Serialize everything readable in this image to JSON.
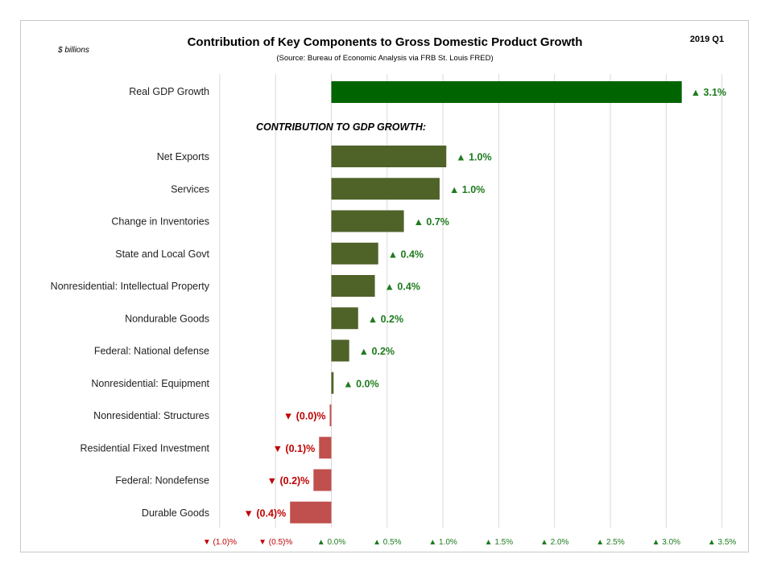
{
  "chart_data": {
    "type": "bar",
    "orientation": "horizontal",
    "title": "Contribution  of Key Components  to Gross Domestic Product Growth",
    "subtitle": "(Source: Bureau of Economic Analysis via FRB St. Louis FRED)",
    "unit_note": "$ billions",
    "period": "2019  Q1",
    "section_label": "CONTRIBUTION TO GDP GROWTH:",
    "xlim": [
      -1.0,
      3.5
    ],
    "x_ticks": [
      -1.0,
      -0.5,
      0.0,
      0.5,
      1.0,
      1.5,
      2.0,
      2.5,
      3.0,
      3.5
    ],
    "x_tick_labels": [
      "▼ (1.0)%",
      "▼ (0.5)%",
      "▲ 0.0%",
      "▲ 0.5%",
      "▲ 1.0%",
      "▲ 1.5%",
      "▲ 2.0%",
      "▲ 2.5%",
      "▲ 3.0%",
      "▲ 3.5%"
    ],
    "grid": "vertical",
    "headline": {
      "category": "Real GDP Growth",
      "value": 3.14,
      "label": "▲ 3.1%"
    },
    "categories": [
      "Net Exports",
      "Services",
      "Change in Inventories",
      "State and Local Govt",
      "Nonresidential: Intellectual Property",
      "Nondurable Goods",
      "Federal: National defense",
      "Nonresidential: Equipment",
      "Nonresidential: Structures",
      "Residential Fixed Investment",
      "Federal: Nondefense",
      "Durable Goods"
    ],
    "values": [
      1.03,
      0.97,
      0.65,
      0.42,
      0.39,
      0.24,
      0.16,
      0.02,
      -0.01,
      -0.11,
      -0.16,
      -0.37
    ],
    "value_labels": [
      "▲ 1.0%",
      "▲ 1.0%",
      "▲ 0.7%",
      "▲ 0.4%",
      "▲ 0.4%",
      "▲ 0.2%",
      "▲ 0.2%",
      "▲ 0.0%",
      "▼ (0.0)%",
      "▼ (0.1)%",
      "▼ (0.2)%",
      "▼ (0.4)%"
    ],
    "colors": {
      "headline_bar": "#006400",
      "positive_bar": "#4f6228",
      "negative_bar": "#c0504d",
      "positive_text": "#1e7b1e",
      "negative_text": "#c00000"
    }
  }
}
